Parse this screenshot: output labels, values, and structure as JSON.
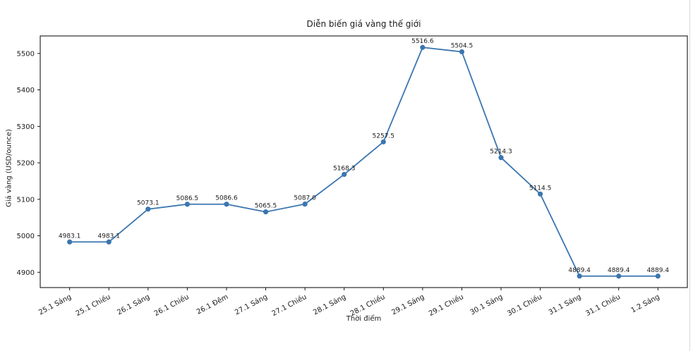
{
  "figure": {
    "background": "#ffffff",
    "text_color": "#1a1a1a",
    "spine_color": "#000000",
    "window_edge_color": "#d9d9d9"
  },
  "chart_data": {
    "type": "line",
    "title": "Diễn biến giá vàng thế giới",
    "xlabel": "Thời điểm",
    "ylabel": "Giá vàng (USD/ounce)",
    "categories": [
      "25.1 Sáng",
      "25.1 Chiều",
      "26.1 Sáng",
      "26.1 Chiều",
      "26.1 Đêm",
      "27.1 Sáng",
      "27.1 Chiều",
      "28.1 Sáng",
      "28.1 Chiều",
      "29.1 Sáng",
      "29.1 Chiều",
      "30.1 Sáng",
      "30.1 Chiều",
      "31.1 Sáng",
      "31.1 Chiều",
      "1.2 Sáng"
    ],
    "values": [
      4983.1,
      4983.1,
      5073.1,
      5086.5,
      5086.6,
      5065.5,
      5087.0,
      5168.3,
      5257.5,
      5516.6,
      5504.5,
      5214.3,
      5114.5,
      4889.4,
      4889.4,
      4889.4
    ],
    "point_labels": [
      "4983.1",
      "4983.1",
      "5073.1",
      "5086.5",
      "5086.6",
      "5065.5",
      "5087.0",
      "5168.3",
      "5257.5",
      "5516.6",
      "5504.5",
      "5214.3",
      "5114.5",
      "4889.4",
      "4889.4",
      "4889.4"
    ],
    "yticks": [
      4900,
      5000,
      5100,
      5200,
      5300,
      5400,
      5500
    ],
    "ylim": [
      4858,
      5548
    ],
    "xlim_pad": 0.75,
    "line_color": "#3b76b0",
    "marker": "circle",
    "marker_radius": 3.6,
    "grid": false,
    "legend_position": "none",
    "x_tick_rotation_deg": -28
  }
}
